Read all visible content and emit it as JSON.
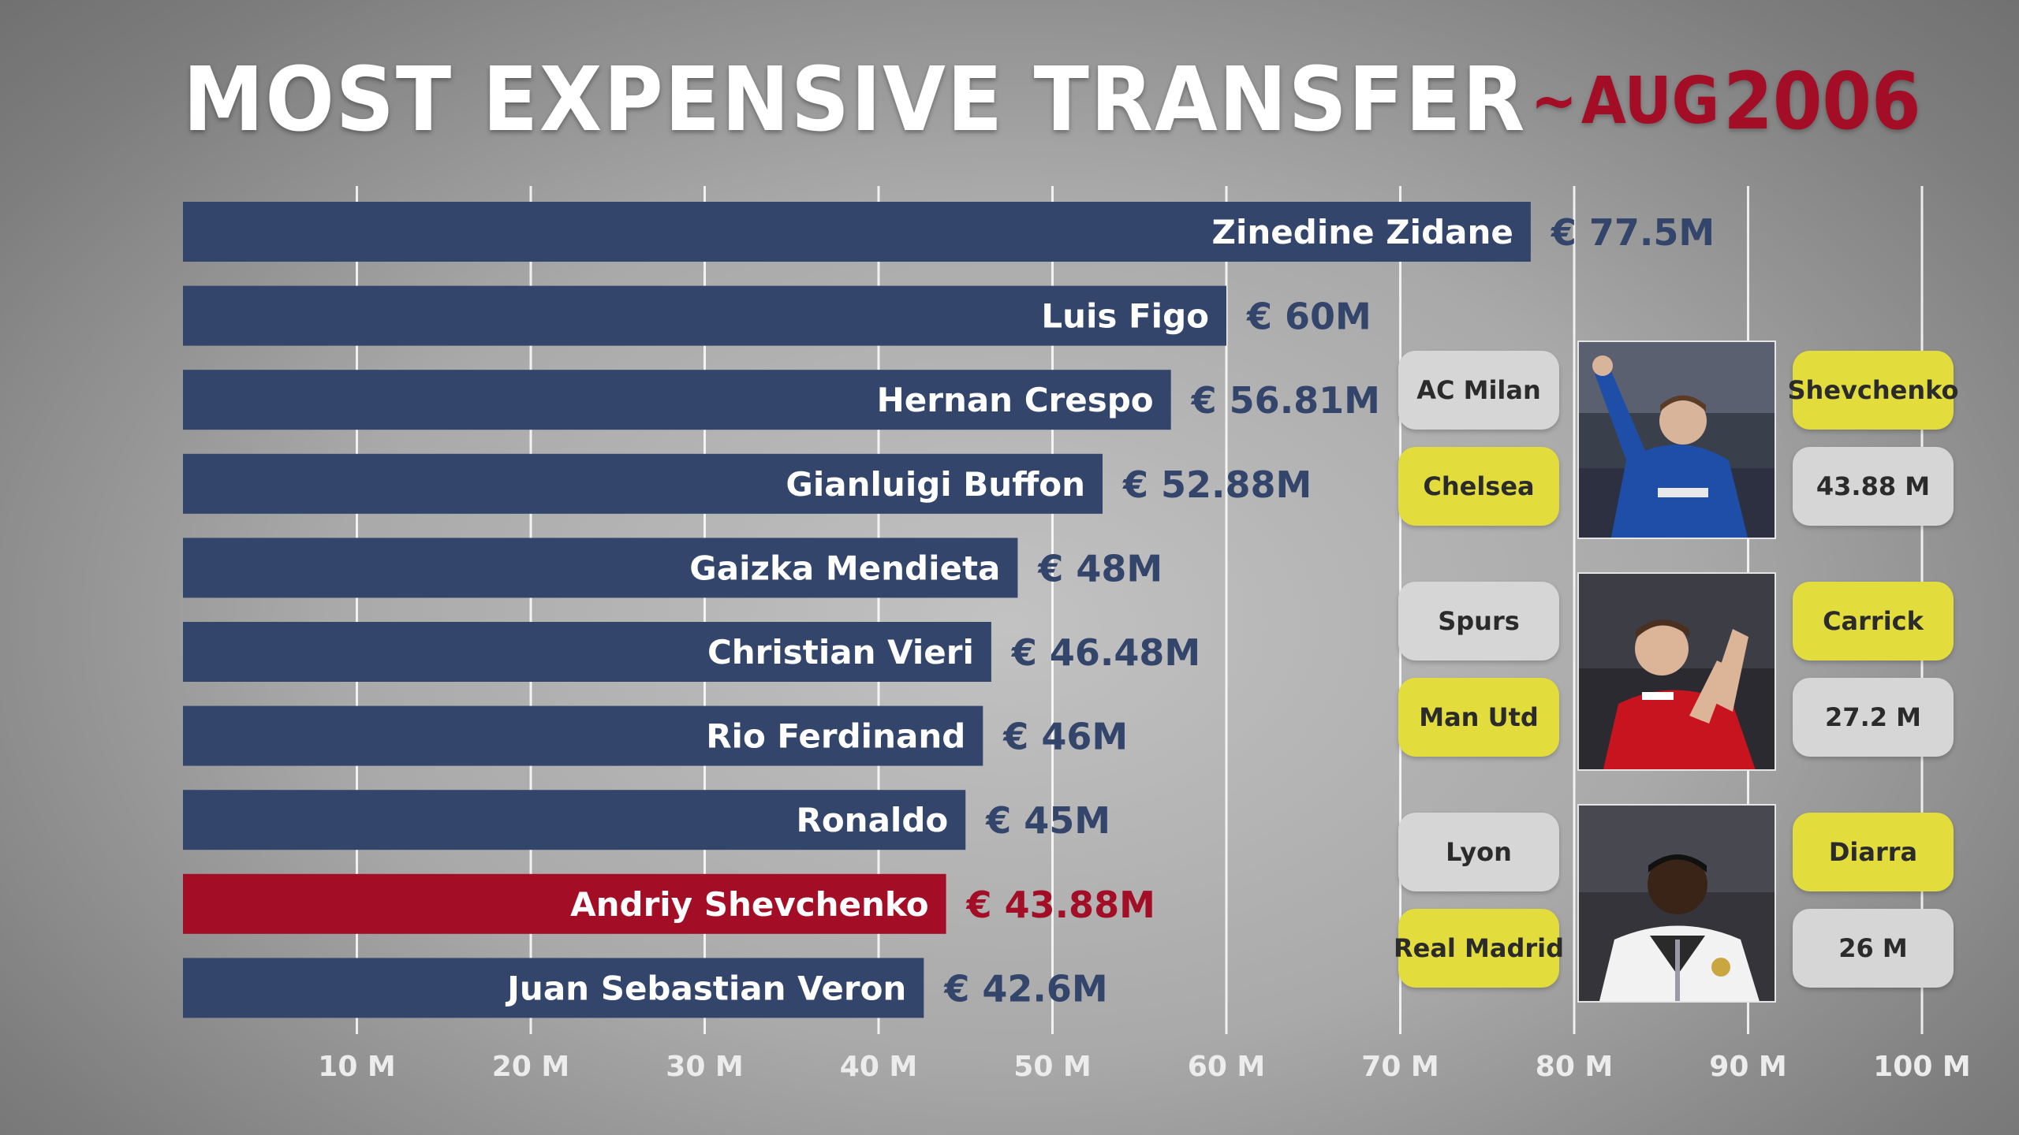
{
  "header": {
    "title": "MOST EXPENSIVE TRANSFER",
    "date_tilde": "~",
    "date_month": "AUG",
    "date_year": "2006"
  },
  "colors": {
    "bar": "#33456a",
    "bar_highlight": "#a30e26",
    "value_text": "#33456a",
    "value_text_highlight": "#a30e26",
    "box_grey": "#d6d6d6",
    "box_yellow": "#e2dc3c",
    "gridline": "#ffffff"
  },
  "chart_data": {
    "type": "bar",
    "orientation": "horizontal",
    "categories": [
      "Zinedine Zidane",
      "Luis Figo",
      "Hernan Crespo",
      "Gianluigi Buffon",
      "Gaizka Mendieta",
      "Christian Vieri",
      "Rio Ferdinand",
      "Ronaldo",
      "Andriy Shevchenko",
      "Juan Sebastian Veron"
    ],
    "values": [
      77.5,
      60,
      56.81,
      52.88,
      48,
      46.48,
      46,
      45,
      43.88,
      42.6
    ],
    "value_labels": [
      "€ 77.5M",
      "€ 60M",
      "€ 56.81M",
      "€ 52.88M",
      "€ 48M",
      "€ 46.48M",
      "€ 46M",
      "€ 45M",
      "€ 43.88M",
      "€ 42.6M"
    ],
    "highlight": "Andriy Shevchenko",
    "xlim": [
      0,
      100
    ],
    "xticks": [
      10,
      20,
      30,
      40,
      50,
      60,
      70,
      80,
      90,
      100
    ],
    "xtick_labels": [
      "10 M",
      "20 M",
      "30 M",
      "40 M",
      "50 M",
      "60 M",
      "70 M",
      "80 M",
      "90 M",
      "100 M"
    ],
    "grid": true
  },
  "side_transfers": [
    {
      "from_club": "AC Milan",
      "to_club": "Chelsea",
      "player": "Shevchenko",
      "fee": "43.88 M",
      "photo": "player-photo-chelsea-kit"
    },
    {
      "from_club": "Spurs",
      "to_club": "Man Utd",
      "player": "Carrick",
      "fee": "27.2 M",
      "photo": "player-photo-red-kit"
    },
    {
      "from_club": "Lyon",
      "to_club": "Real Madrid",
      "player": "Diarra",
      "fee": "26 M",
      "photo": "player-photo-white-kit"
    }
  ]
}
